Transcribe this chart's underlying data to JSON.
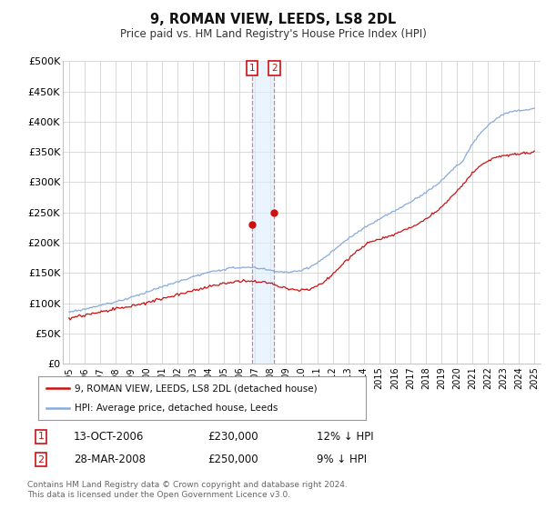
{
  "title": "9, ROMAN VIEW, LEEDS, LS8 2DL",
  "subtitle": "Price paid vs. HM Land Registry's House Price Index (HPI)",
  "hpi_color": "#88aadd",
  "price_color": "#cc1111",
  "marker_color": "#cc1111",
  "annotation_box_color": "#cc1111",
  "shade_color": "#ddeeff",
  "bg_color": "#ffffff",
  "grid_color": "#cccccc",
  "ylim": [
    0,
    500000
  ],
  "yticks": [
    0,
    50000,
    100000,
    150000,
    200000,
    250000,
    300000,
    350000,
    400000,
    450000,
    500000
  ],
  "ytick_labels": [
    "£0",
    "£50K",
    "£100K",
    "£150K",
    "£200K",
    "£250K",
    "£300K",
    "£350K",
    "£400K",
    "£450K",
    "£500K"
  ],
  "legend_label_price": "9, ROMAN VIEW, LEEDS, LS8 2DL (detached house)",
  "legend_label_hpi": "HPI: Average price, detached house, Leeds",
  "sale1_date": "13-OCT-2006",
  "sale1_price": 230000,
  "sale1_hpi_pct": "12% ↓ HPI",
  "sale2_date": "28-MAR-2008",
  "sale2_price": 250000,
  "sale2_hpi_pct": "9% ↓ HPI",
  "footnote": "Contains HM Land Registry data © Crown copyright and database right 2024.\nThis data is licensed under the Open Government Licence v3.0.",
  "sale1_x": 2006.79,
  "sale2_x": 2008.24,
  "xmin": 1995,
  "xmax": 2025
}
